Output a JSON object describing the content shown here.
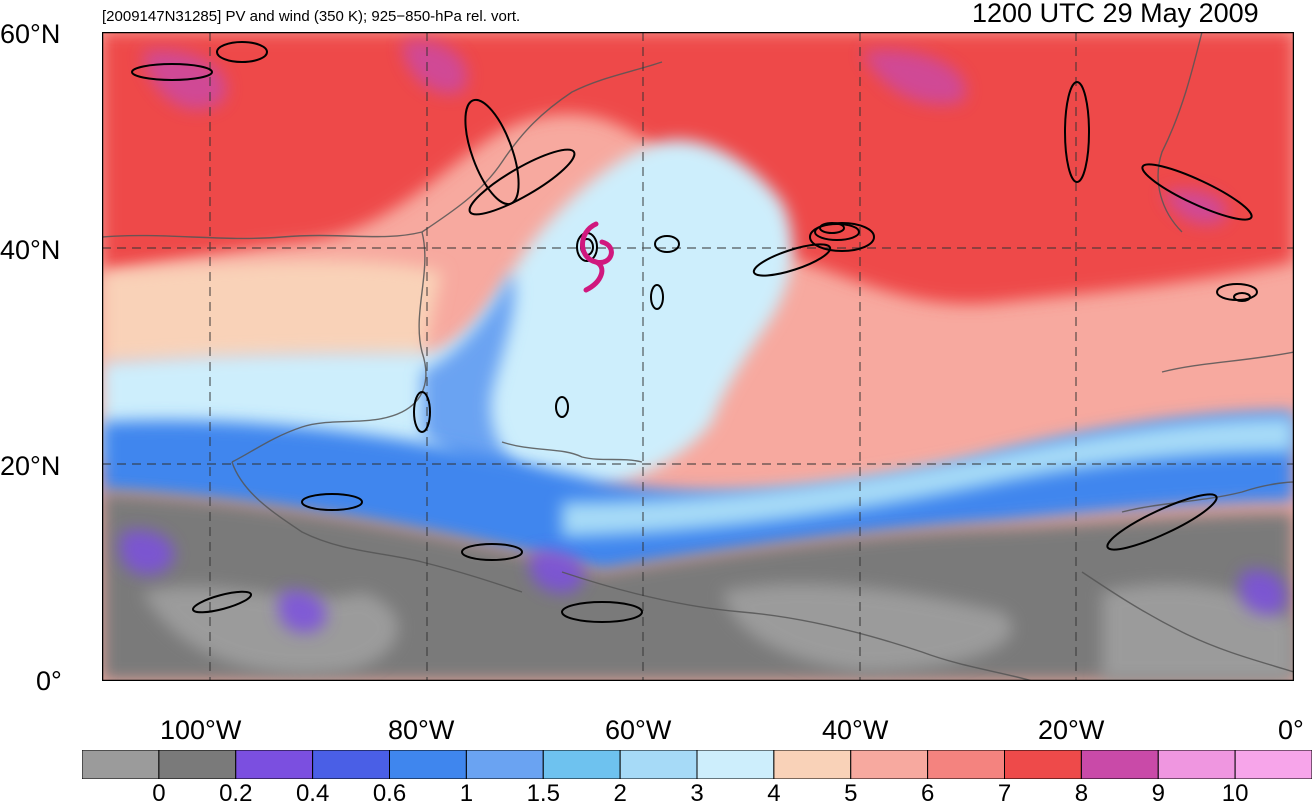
{
  "header": {
    "left_title": "[2009147N31285] PV and wind (350 K); 925−850-hPa rel. vort.",
    "right_title": "1200 UTC 29 May 2009"
  },
  "map": {
    "lat_labels": [
      "60°N",
      "40°N",
      "20°N",
      "0°"
    ],
    "lon_labels": [
      "100°W",
      "80°W",
      "60°W",
      "40°W",
      "20°W",
      "0°"
    ],
    "storm_marker": "tropical-cyclone-symbol"
  },
  "colorbar": {
    "ticks": [
      "0",
      "0.2",
      "0.4",
      "0.6",
      "1",
      "1.5",
      "2",
      "3",
      "4",
      "5",
      "6",
      "7",
      "8",
      "9",
      "10"
    ],
    "colors": [
      "#9b9b9b",
      "#7a7a7a",
      "#7b4fe0",
      "#4a5fe6",
      "#3f86ee",
      "#6aa3f2",
      "#6ec2ef",
      "#a6daf7",
      "#cdeefc",
      "#f9d2b8",
      "#f7a99f",
      "#f4837f",
      "#ee4a4a",
      "#c94aa8",
      "#ef96e0"
    ]
  }
}
